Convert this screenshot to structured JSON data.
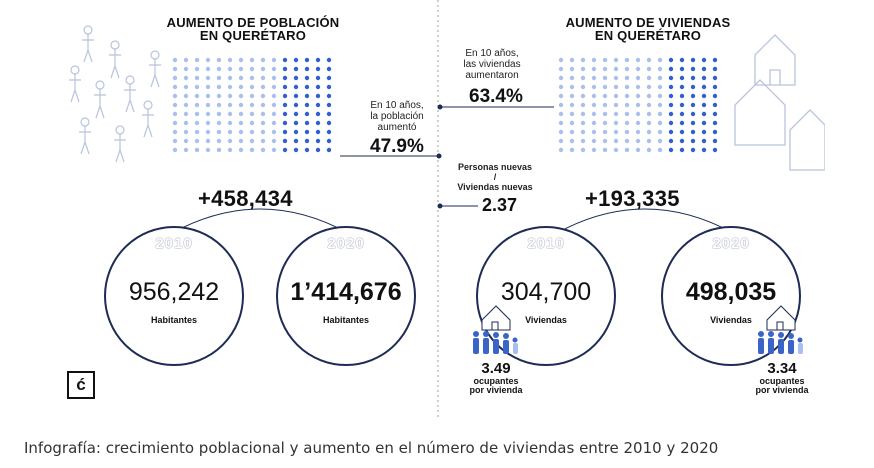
{
  "left": {
    "title_line1": "AUMENTO DE POBLACIÓN",
    "title_line2": "EN QUERÉTARO",
    "note_line1": "En 10 años,",
    "note_line2": "la población",
    "note_line3": "aumentó",
    "percent": "47.9%",
    "difference": "+458,434",
    "circle_2010": {
      "year": "2010",
      "value": "956,242",
      "unit": "Habitantes"
    },
    "circle_2020": {
      "year": "2020",
      "value": "1’414,676",
      "unit": "Habitantes"
    }
  },
  "right": {
    "title_line1": "AUMENTO DE VIVIENDAS",
    "title_line2": "EN QUERÉTARO",
    "note_line1": "En 10 años,",
    "note_line2": "las viviendas",
    "note_line3": "aumentaron",
    "percent": "63.4%",
    "difference": "+193,335",
    "circle_2010": {
      "year": "2010",
      "value": "304,700",
      "unit": "Viviendas"
    },
    "circle_2020": {
      "year": "2020",
      "value": "498,035",
      "unit": "Viviendas"
    },
    "occupants_2010": {
      "value": "3.49",
      "label_line1": "ocupantes",
      "label_line2": "por vivienda"
    },
    "occupants_2020": {
      "value": "3.34",
      "label_line1": "ocupantes",
      "label_line2": "por vivienda"
    }
  },
  "ratio": {
    "label_line1": "Personas nuevas",
    "label_line2": "/",
    "label_line3": "Viviendas nuevas",
    "value": "2.37"
  },
  "logo_glyph": "ć",
  "caption": "Infografía: crecimiento poblacional y aumento en el número de viviendas entre 2010 y 2020",
  "colors": {
    "dot_light": "#a9c0ee",
    "dot_dark": "#2f5fd0",
    "circle_stroke": "#1d2b55",
    "people": "#3a64c8",
    "sketch": "#b8c4dc"
  },
  "icons": [
    "people-sketch-icon",
    "house-sketch-icon",
    "family-icon",
    "house-icon",
    "logo-icon"
  ]
}
